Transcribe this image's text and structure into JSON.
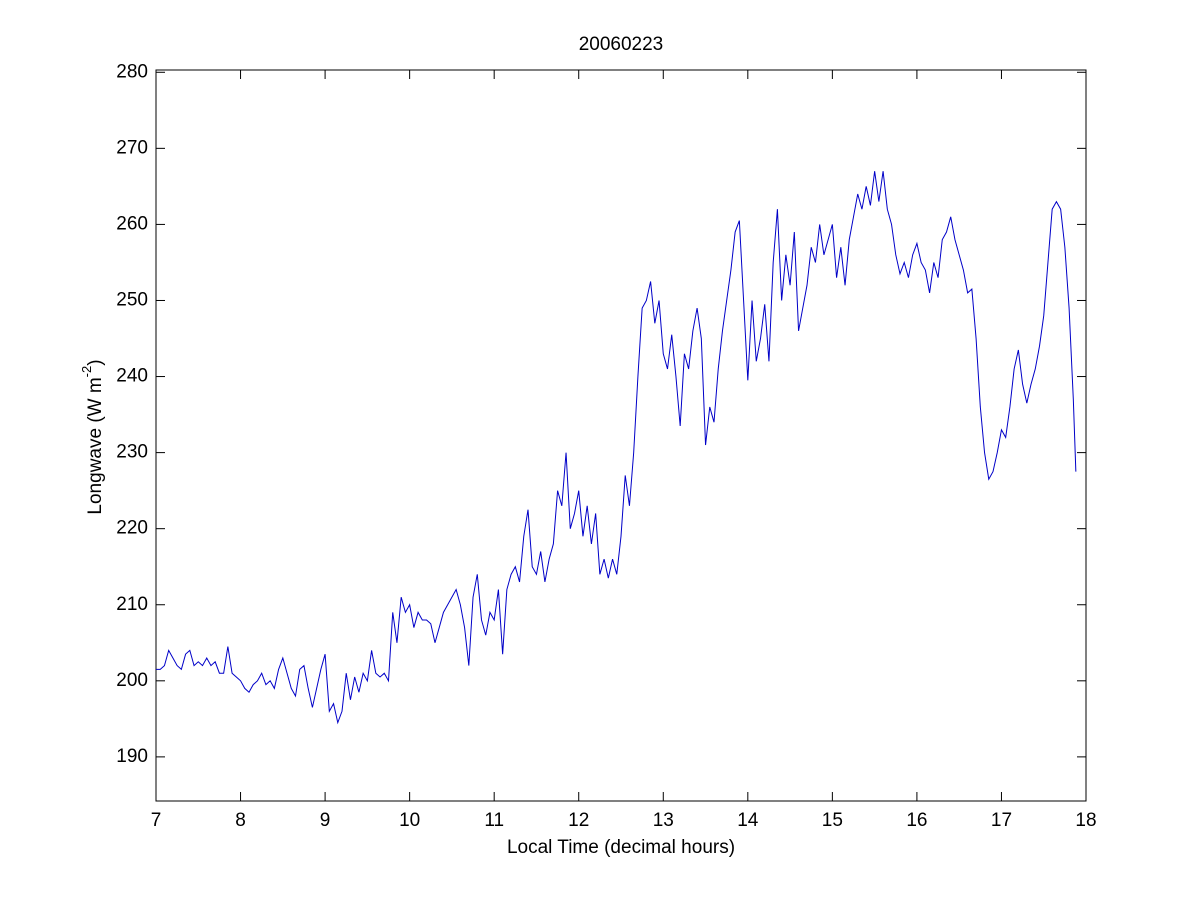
{
  "chart_data": {
    "type": "line",
    "title": "20060223",
    "x_label": "Local Time (decimal hours)",
    "y_label": [
      "Longwave (W m",
      "-2",
      ")"
    ],
    "xlim": [
      7,
      18
    ],
    "ylim": [
      184.2,
      280.3
    ],
    "xticks": [
      7,
      8,
      9,
      10,
      11,
      12,
      13,
      14,
      15,
      16,
      17,
      18
    ],
    "yticks": [
      190,
      200,
      210,
      220,
      230,
      240,
      250,
      260,
      270,
      280
    ],
    "grid": false,
    "x": [
      7.0,
      7.05,
      7.1,
      7.15,
      7.2,
      7.25,
      7.3,
      7.35,
      7.4,
      7.45,
      7.5,
      7.55,
      7.6,
      7.65,
      7.7,
      7.75,
      7.8,
      7.85,
      7.9,
      7.95,
      8.0,
      8.05,
      8.1,
      8.15,
      8.2,
      8.25,
      8.3,
      8.35,
      8.4,
      8.45,
      8.5,
      8.55,
      8.6,
      8.65,
      8.7,
      8.75,
      8.8,
      8.85,
      8.9,
      8.95,
      9.0,
      9.05,
      9.1,
      9.15,
      9.2,
      9.25,
      9.3,
      9.35,
      9.4,
      9.45,
      9.5,
      9.55,
      9.6,
      9.65,
      9.7,
      9.75,
      9.8,
      9.85,
      9.9,
      9.95,
      10.0,
      10.05,
      10.1,
      10.15,
      10.2,
      10.25,
      10.3,
      10.35,
      10.4,
      10.45,
      10.5,
      10.55,
      10.6,
      10.65,
      10.7,
      10.75,
      10.8,
      10.85,
      10.9,
      10.95,
      11.0,
      11.05,
      11.1,
      11.15,
      11.2,
      11.25,
      11.3,
      11.35,
      11.4,
      11.45,
      11.5,
      11.55,
      11.6,
      11.65,
      11.7,
      11.75,
      11.8,
      11.85,
      11.9,
      11.95,
      12.0,
      12.05,
      12.1,
      12.15,
      12.2,
      12.25,
      12.3,
      12.35,
      12.4,
      12.45,
      12.5,
      12.55,
      12.6,
      12.65,
      12.7,
      12.75,
      12.8,
      12.85,
      12.9,
      12.95,
      13.0,
      13.05,
      13.1,
      13.15,
      13.2,
      13.25,
      13.3,
      13.35,
      13.4,
      13.45,
      13.5,
      13.55,
      13.6,
      13.65,
      13.7,
      13.75,
      13.8,
      13.85,
      13.9,
      13.95,
      14.0,
      14.05,
      14.1,
      14.15,
      14.2,
      14.25,
      14.3,
      14.35,
      14.4,
      14.45,
      14.5,
      14.55,
      14.6,
      14.65,
      14.7,
      14.75,
      14.8,
      14.85,
      14.9,
      14.95,
      15.0,
      15.05,
      15.1,
      15.15,
      15.2,
      15.25,
      15.3,
      15.35,
      15.4,
      15.45,
      15.5,
      15.55,
      15.6,
      15.65,
      15.7,
      15.75,
      15.8,
      15.85,
      15.9,
      15.95,
      16.0,
      16.05,
      16.1,
      16.15,
      16.2,
      16.25,
      16.3,
      16.35,
      16.4,
      16.45,
      16.5,
      16.55,
      16.6,
      16.65,
      16.7,
      16.75,
      16.8,
      16.85,
      16.9,
      16.95,
      17.0,
      17.05,
      17.1,
      17.15,
      17.2,
      17.25,
      17.3,
      17.35,
      17.4,
      17.45,
      17.5,
      17.55,
      17.6,
      17.65,
      17.7,
      17.75,
      17.8,
      17.85,
      17.88
    ],
    "series": [
      {
        "name": "Longwave",
        "color": "#0000c8",
        "values": [
          201.5,
          201.5,
          202,
          204,
          203,
          202,
          201.5,
          203.5,
          204,
          202,
          202.5,
          202,
          203,
          202,
          202.5,
          201,
          201,
          204.5,
          201,
          200.5,
          200,
          199,
          198.5,
          199.5,
          200,
          201,
          199.5,
          200,
          199,
          201.5,
          203,
          201,
          199,
          198,
          201.5,
          202,
          199,
          196.5,
          199,
          201.5,
          203.5,
          196,
          197,
          194.5,
          196,
          201,
          197.5,
          200.5,
          198.5,
          201,
          200,
          204,
          201,
          200.5,
          201,
          200,
          209,
          205,
          211,
          209,
          210,
          207,
          209,
          208,
          208,
          207.5,
          205,
          207,
          209,
          210,
          211,
          212,
          210,
          207,
          202,
          211,
          214,
          208,
          206,
          209,
          208,
          212,
          203.5,
          212,
          214,
          215,
          213,
          219,
          222.5,
          215,
          214,
          217,
          213,
          216,
          218,
          225,
          223,
          230,
          220,
          222,
          225,
          219,
          223,
          218,
          222,
          214,
          216,
          213.5,
          216,
          214,
          219,
          227,
          223,
          230,
          240,
          249,
          250,
          252.5,
          247,
          250,
          243,
          241,
          245.5,
          240,
          233.5,
          243,
          241,
          246,
          249,
          245,
          231,
          236,
          234,
          241,
          246,
          250,
          254,
          259,
          260.5,
          250,
          239.5,
          250,
          242,
          245,
          249.5,
          242,
          255,
          262,
          250,
          256,
          252,
          259,
          246,
          249,
          252,
          257,
          255,
          260,
          256,
          258,
          260,
          253,
          257,
          252,
          258,
          261,
          264,
          262,
          265,
          262.5,
          267,
          263,
          267,
          262,
          260,
          256,
          253.5,
          255,
          253,
          256,
          257.5,
          255,
          254,
          251,
          255,
          253,
          258,
          259,
          261,
          258,
          256,
          254,
          251,
          251.5,
          245,
          236,
          230,
          226.5,
          227.5,
          230,
          233,
          232,
          236,
          241,
          243.5,
          239,
          236.5,
          239,
          241,
          244,
          248,
          255,
          262,
          263,
          262,
          257,
          249,
          237,
          227.5
        ]
      }
    ]
  }
}
